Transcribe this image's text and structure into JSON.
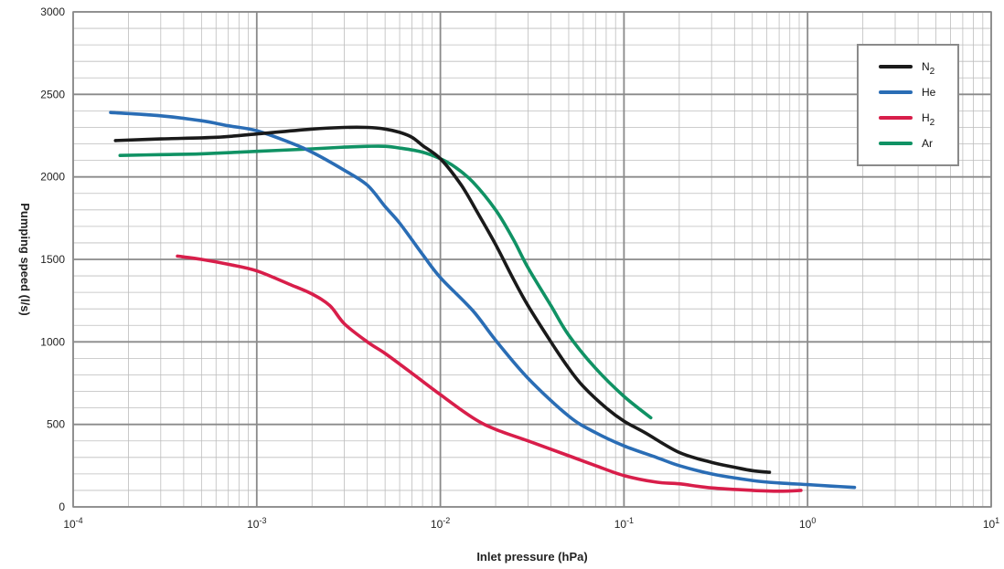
{
  "chart_data": {
    "type": "line",
    "title": "",
    "xlabel": "Inlet pressure (hPa)",
    "ylabel": "Pumping speed (l/s)",
    "x_scale": "log",
    "xlim": [
      0.0001,
      10
    ],
    "ylim": [
      0,
      3000
    ],
    "x_ticks": [
      {
        "value": 0.0001,
        "base": "10",
        "exp": "-4"
      },
      {
        "value": 0.001,
        "base": "10",
        "exp": "-3"
      },
      {
        "value": 0.01,
        "base": "10",
        "exp": "-2"
      },
      {
        "value": 0.1,
        "base": "10",
        "exp": "-1"
      },
      {
        "value": 1,
        "base": "10",
        "exp": "0"
      },
      {
        "value": 10,
        "base": "10",
        "exp": "1"
      }
    ],
    "y_ticks": [
      {
        "value": 0,
        "label": "0"
      },
      {
        "value": 500,
        "label": "500"
      },
      {
        "value": 1000,
        "label": "1000"
      },
      {
        "value": 1500,
        "label": "1500"
      },
      {
        "value": 2000,
        "label": "2000"
      },
      {
        "value": 2500,
        "label": "2500"
      },
      {
        "value": 3000,
        "label": "3000"
      }
    ],
    "y_minor_step": 100,
    "grid": true,
    "legend_position": "top-right",
    "series": [
      {
        "name": "N",
        "name_sub": "2",
        "color": "#1a1a1a",
        "points": [
          [
            0.00017,
            2220
          ],
          [
            0.0003,
            2230
          ],
          [
            0.0006,
            2240
          ],
          [
            0.001,
            2260
          ],
          [
            0.002,
            2290
          ],
          [
            0.003,
            2300
          ],
          [
            0.004,
            2300
          ],
          [
            0.005,
            2290
          ],
          [
            0.006,
            2270
          ],
          [
            0.007,
            2240
          ],
          [
            0.008,
            2190
          ],
          [
            0.01,
            2110
          ],
          [
            0.013,
            1950
          ],
          [
            0.016,
            1780
          ],
          [
            0.02,
            1590
          ],
          [
            0.025,
            1380
          ],
          [
            0.03,
            1220
          ],
          [
            0.04,
            1000
          ],
          [
            0.05,
            840
          ],
          [
            0.06,
            730
          ],
          [
            0.08,
            600
          ],
          [
            0.1,
            520
          ],
          [
            0.13,
            450
          ],
          [
            0.2,
            330
          ],
          [
            0.3,
            270
          ],
          [
            0.4,
            240
          ],
          [
            0.5,
            220
          ],
          [
            0.62,
            210
          ]
        ]
      },
      {
        "name": "He",
        "name_sub": "",
        "color": "#2a6db5",
        "points": [
          [
            0.00016,
            2390
          ],
          [
            0.0003,
            2370
          ],
          [
            0.0005,
            2340
          ],
          [
            0.0007,
            2310
          ],
          [
            0.001,
            2280
          ],
          [
            0.0015,
            2210
          ],
          [
            0.002,
            2150
          ],
          [
            0.003,
            2040
          ],
          [
            0.004,
            1950
          ],
          [
            0.005,
            1820
          ],
          [
            0.006,
            1720
          ],
          [
            0.008,
            1530
          ],
          [
            0.01,
            1390
          ],
          [
            0.015,
            1190
          ],
          [
            0.02,
            1010
          ],
          [
            0.03,
            780
          ],
          [
            0.05,
            550
          ],
          [
            0.07,
            450
          ],
          [
            0.1,
            370
          ],
          [
            0.15,
            300
          ],
          [
            0.2,
            250
          ],
          [
            0.3,
            200
          ],
          [
            0.5,
            160
          ],
          [
            0.7,
            145
          ],
          [
            1,
            135
          ],
          [
            1.4,
            125
          ],
          [
            1.8,
            118
          ]
        ]
      },
      {
        "name": "H",
        "name_sub": "2",
        "color": "#d81e4a",
        "points": [
          [
            0.00037,
            1520
          ],
          [
            0.0005,
            1500
          ],
          [
            0.0007,
            1470
          ],
          [
            0.001,
            1430
          ],
          [
            0.0015,
            1350
          ],
          [
            0.002,
            1290
          ],
          [
            0.0025,
            1220
          ],
          [
            0.003,
            1110
          ],
          [
            0.004,
            1000
          ],
          [
            0.005,
            930
          ],
          [
            0.007,
            810
          ],
          [
            0.01,
            680
          ],
          [
            0.015,
            540
          ],
          [
            0.02,
            470
          ],
          [
            0.03,
            400
          ],
          [
            0.05,
            310
          ],
          [
            0.07,
            250
          ],
          [
            0.1,
            190
          ],
          [
            0.15,
            150
          ],
          [
            0.2,
            140
          ],
          [
            0.3,
            115
          ],
          [
            0.5,
            100
          ],
          [
            0.7,
            95
          ],
          [
            0.92,
            100
          ]
        ]
      },
      {
        "name": "Ar",
        "name_sub": "",
        "color": "#109264",
        "points": [
          [
            0.00018,
            2130
          ],
          [
            0.0003,
            2135
          ],
          [
            0.0005,
            2140
          ],
          [
            0.001,
            2155
          ],
          [
            0.002,
            2170
          ],
          [
            0.003,
            2180
          ],
          [
            0.004,
            2185
          ],
          [
            0.005,
            2185
          ],
          [
            0.006,
            2175
          ],
          [
            0.008,
            2150
          ],
          [
            0.01,
            2110
          ],
          [
            0.012,
            2060
          ],
          [
            0.015,
            1970
          ],
          [
            0.02,
            1800
          ],
          [
            0.025,
            1620
          ],
          [
            0.03,
            1450
          ],
          [
            0.04,
            1220
          ],
          [
            0.05,
            1040
          ],
          [
            0.07,
            840
          ],
          [
            0.1,
            670
          ],
          [
            0.14,
            540
          ]
        ]
      }
    ]
  }
}
